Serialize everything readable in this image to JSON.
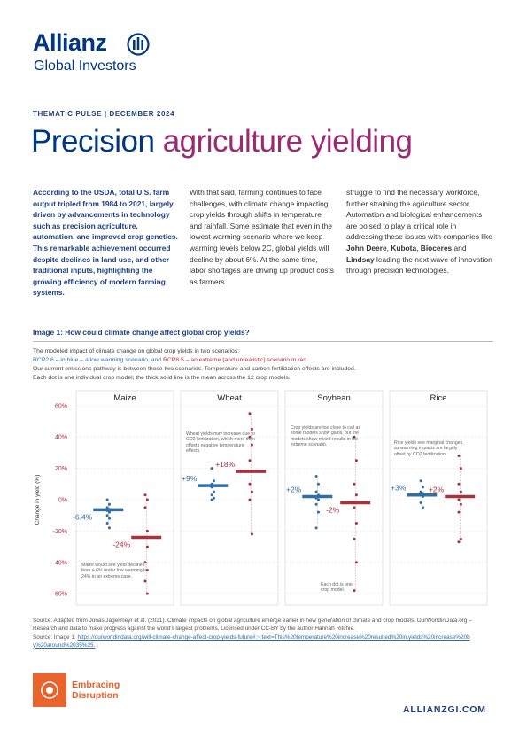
{
  "header": {
    "brand": "Allianz",
    "division": "Global Investors",
    "kicker": "THEMATIC PULSE | DECEMBER 2024",
    "title_part1": "Precision",
    "title_part2": "agriculture yielding"
  },
  "article": {
    "column1": "According to the USDA, total U.S. farm output tripled from 1984 to 2021, largely driven by advancements in technology such as precision agriculture, automation, and improved crop genetics. This remarkable achievement occurred despite declines in land use, and other traditional inputs, highlighting the growing efficiency of modern farming systems.",
    "column2": "With that said, farming continues to face challenges, with climate change impacting crop yields through shifts in temperature and rainfall. Some estimate that even in the lowest warming scenario where we keep warming levels below 2C, global yields will decline by about 6%. At the same time, labor shortages are driving up product costs as farmers",
    "column3": [
      "struggle to find the necessary workforce, further straining the agriculture sector. Automation and biological enhancements are poised to play a critical role in addressing these issues with companies like ",
      "John Deere",
      ", ",
      "Kubota",
      ", ",
      "Bioceres",
      " and ",
      "Lindsay",
      " leading the next wave of innovation through precision technologies."
    ]
  },
  "figure": {
    "caption": "Image 1: How could climate change affect global crop yields?",
    "intro1": "The modeled impact of climate change on global crop yields in two scenarios:",
    "intro2a": " – in blue – a low warming scenario, and ",
    "intro2b": " – an extreme (and unrealistic) scenario in red.",
    "intro3": "Our current emissions pathway is between these two scenarios. Temperature and carbon fertilization effects are included.",
    "intro4": "Each dot is one individual crop model; the thick solid line is the mean across the 12 crop models."
  },
  "chart_data": {
    "type": "strip",
    "y_label": "Change in yield (%)",
    "ylim": [
      -65,
      65
    ],
    "yticks": [
      {
        "value": -60,
        "label": "-60%"
      },
      {
        "value": -40,
        "label": "-40%"
      },
      {
        "value": -20,
        "label": "-20%"
      },
      {
        "value": 0,
        "label": "0%"
      },
      {
        "value": 20,
        "label": "20%"
      },
      {
        "value": 40,
        "label": "40%"
      },
      {
        "value": 60,
        "label": "60%"
      }
    ],
    "grid": true,
    "series": [
      {
        "name": "RCP2.6",
        "color": "#2f6ea6"
      },
      {
        "name": "RCP8.5",
        "color": "#a8313d"
      }
    ],
    "panels": [
      {
        "name": "Maize",
        "means": [
          -6.4,
          -24
        ],
        "mean_labels": [
          "-6.4%",
          "-24%"
        ],
        "points": [
          [
            0,
            -3,
            -5,
            -6,
            -7,
            -8,
            -10,
            -12,
            -15,
            -18
          ],
          [
            3,
            0,
            -5,
            -20,
            -24,
            -30,
            -40,
            -45,
            -52,
            -60
          ]
        ],
        "notes": [
          "Maize would see yield declines, from a 6% under low warming to 24% in an extreme case."
        ]
      },
      {
        "name": "Wheat",
        "means": [
          9,
          18
        ],
        "mean_labels": [
          "+9%",
          "+18%"
        ],
        "points": [
          [
            20,
            12,
            10,
            9,
            8,
            5,
            3,
            1,
            0
          ],
          [
            55,
            45,
            40,
            35,
            25,
            18,
            10,
            5,
            0,
            -22
          ]
        ],
        "notes": [
          "Wheat yields may increase due to CO2 fertilization, which more than offsets negative temperature effects."
        ]
      },
      {
        "name": "Soybean",
        "means": [
          2,
          -2
        ],
        "mean_labels": [
          "+2%",
          "-2%"
        ],
        "points": [
          [
            15,
            10,
            5,
            3,
            1,
            0,
            -3,
            -8,
            -18
          ],
          [
            40,
            25,
            10,
            3,
            -5,
            -15,
            -25,
            -40,
            -58
          ]
        ],
        "notes": [
          "Crop yields are too close to call as some models show gains, but the models show mixed results in the extreme scenario.",
          "Each dot is one crop model."
        ]
      },
      {
        "name": "Rice",
        "means": [
          3,
          2
        ],
        "mean_labels": [
          "+3%",
          "+2%"
        ],
        "points": [
          [
            12,
            8,
            5,
            4,
            3,
            2,
            -2,
            -5
          ],
          [
            28,
            20,
            10,
            5,
            0,
            -3,
            -8,
            -25,
            -27
          ]
        ],
        "notes": [
          "Rice yields see marginal changes, as warming impacts are largely offset by CO2 fertilization."
        ]
      }
    ]
  },
  "sources": {
    "source1": "Source: Adapted from Jonas Jägermeyr et al. (2021). Climate impacts on global agriculture emerge earlier in new generation of climate and crop models. OurWorldinData.org – Research and data to make progress against the world's largest problems. Licensed under CC-BY by the author Hannah Ritchie.",
    "source2_prefix": "Source: Image 1: ",
    "source2_link": "https://ourworldindata.org/will-climate-change-affect-crop-yields-future#:~:text=This%20temperature%20increase%20resulted%20in,yields%20increase%20by%20around%2035%25."
  },
  "footer": {
    "badge_line1": "Embracing",
    "badge_line2": "Disruption",
    "site": "ALLIANZGI.COM"
  }
}
